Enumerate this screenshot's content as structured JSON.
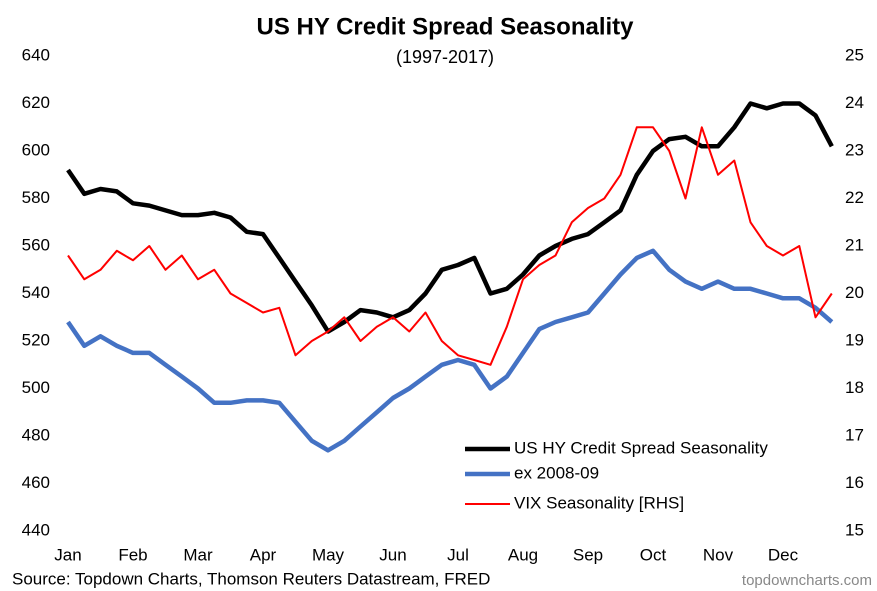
{
  "chart_data": {
    "type": "line",
    "title": "US HY Credit Spread Seasonality",
    "subtitle": "(1997-2017)",
    "source": "Source: Topdown Charts, Thomson Reuters Datastream, FRED",
    "watermark": "topdowncharts.com",
    "categories": [
      "Jan",
      null,
      null,
      null,
      "Feb",
      null,
      null,
      null,
      "Mar",
      null,
      null,
      null,
      "Apr",
      null,
      null,
      null,
      "May",
      null,
      null,
      null,
      "Jun",
      null,
      null,
      null,
      "Jul",
      null,
      null,
      null,
      "Aug",
      null,
      null,
      null,
      "Sep",
      null,
      null,
      null,
      "Oct",
      null,
      null,
      null,
      "Nov",
      null,
      null,
      null,
      "Dec",
      null,
      null,
      null
    ],
    "ylim": [
      440,
      640
    ],
    "yticks": [
      440,
      460,
      480,
      500,
      520,
      540,
      560,
      580,
      600,
      620,
      640
    ],
    "y2lim": [
      15,
      25
    ],
    "y2ticks": [
      15,
      16,
      17,
      18,
      19,
      20,
      21,
      22,
      23,
      24,
      25
    ],
    "legend": "lower right",
    "series": [
      {
        "name": "US HY Credit Spread Seasonality",
        "color": "#000000",
        "values": [
          592,
          582,
          584,
          583,
          578,
          577,
          575,
          573,
          573,
          574,
          572,
          566,
          565,
          555,
          545,
          535,
          524,
          528,
          533,
          532,
          530,
          533,
          540,
          550,
          552,
          555,
          540,
          542,
          548,
          556,
          560,
          563,
          565,
          570,
          575,
          590,
          600,
          605,
          606,
          602,
          602,
          610,
          620,
          618,
          620,
          620,
          615,
          602
        ]
      },
      {
        "name": "ex 2008-09",
        "color": "#4472c4",
        "values": [
          528,
          518,
          522,
          518,
          515,
          515,
          510,
          505,
          500,
          494,
          494,
          495,
          495,
          494,
          486,
          478,
          474,
          478,
          484,
          490,
          496,
          500,
          505,
          510,
          512,
          510,
          500,
          505,
          515,
          525,
          528,
          530,
          532,
          540,
          548,
          555,
          558,
          550,
          545,
          542,
          545,
          542,
          542,
          540,
          538,
          538,
          534,
          528
        ]
      },
      {
        "name": "VIX Seasonality [RHS]",
        "color": "#ff0000",
        "axis": "y2",
        "values": [
          20.8,
          20.3,
          20.5,
          20.9,
          20.7,
          21.0,
          20.5,
          20.8,
          20.3,
          20.5,
          20.0,
          19.8,
          19.6,
          19.7,
          18.7,
          19.0,
          19.2,
          19.5,
          19.0,
          19.3,
          19.5,
          19.2,
          19.6,
          19.0,
          18.7,
          18.6,
          18.5,
          19.3,
          20.3,
          20.6,
          20.8,
          21.5,
          21.8,
          22.0,
          22.5,
          23.5,
          23.5,
          23.0,
          22.0,
          23.5,
          22.5,
          22.8,
          21.5,
          21.0,
          20.8,
          21.0,
          19.5,
          20.0
        ]
      }
    ]
  }
}
